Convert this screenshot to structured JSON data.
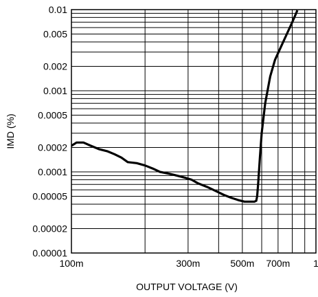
{
  "chart_data": {
    "type": "line",
    "xlabel": "OUTPUT VOLTAGE (V)",
    "ylabel": "IMD (%)",
    "x_scale": "log",
    "y_scale": "log",
    "xlim": [
      0.1,
      1
    ],
    "ylim": [
      1e-05,
      0.01
    ],
    "grid": true,
    "x_ticks": [
      {
        "value": 0.1,
        "label": "100m"
      },
      {
        "value": 0.3,
        "label": "300m"
      },
      {
        "value": 0.5,
        "label": "500m"
      },
      {
        "value": 0.7,
        "label": "700m"
      },
      {
        "value": 1,
        "label": "1"
      }
    ],
    "y_ticks": [
      {
        "value": 0.01,
        "label": "0.01"
      },
      {
        "value": 0.005,
        "label": "0.005"
      },
      {
        "value": 0.002,
        "label": "0.002"
      },
      {
        "value": 0.001,
        "label": "0.001"
      },
      {
        "value": 0.0005,
        "label": "0.0005"
      },
      {
        "value": 0.0002,
        "label": "0.0002"
      },
      {
        "value": 0.0001,
        "label": "0.0001"
      },
      {
        "value": 5e-05,
        "label": "0.00005"
      },
      {
        "value": 2e-05,
        "label": "0.00002"
      },
      {
        "value": 1e-05,
        "label": "0.00001"
      }
    ],
    "series": [
      {
        "color": "#000000",
        "x": [
          0.1,
          0.105,
          0.112,
          0.12,
          0.13,
          0.14,
          0.15,
          0.16,
          0.17,
          0.185,
          0.2,
          0.215,
          0.23,
          0.25,
          0.27,
          0.29,
          0.31,
          0.33,
          0.36,
          0.39,
          0.42,
          0.45,
          0.48,
          0.51,
          0.54,
          0.56,
          0.57,
          0.575,
          0.58,
          0.59,
          0.6,
          0.62,
          0.65,
          0.68,
          0.72,
          0.76,
          0.8,
          0.84
        ],
        "y": [
          0.00021,
          0.00023,
          0.00023,
          0.00021,
          0.00019,
          0.00018,
          0.000165,
          0.00015,
          0.000132,
          0.000128,
          0.00012,
          0.00011,
          0.0001,
          9.5e-05,
          9e-05,
          8.5e-05,
          8e-05,
          7.2e-05,
          6.5e-05,
          5.8e-05,
          5.2e-05,
          4.8e-05,
          4.5e-05,
          4.3e-05,
          4.3e-05,
          4.3e-05,
          4.4e-05,
          5e-05,
          7e-05,
          0.00015,
          0.0003,
          0.0007,
          0.0015,
          0.0024,
          0.0035,
          0.005,
          0.007,
          0.0098
        ]
      }
    ]
  }
}
